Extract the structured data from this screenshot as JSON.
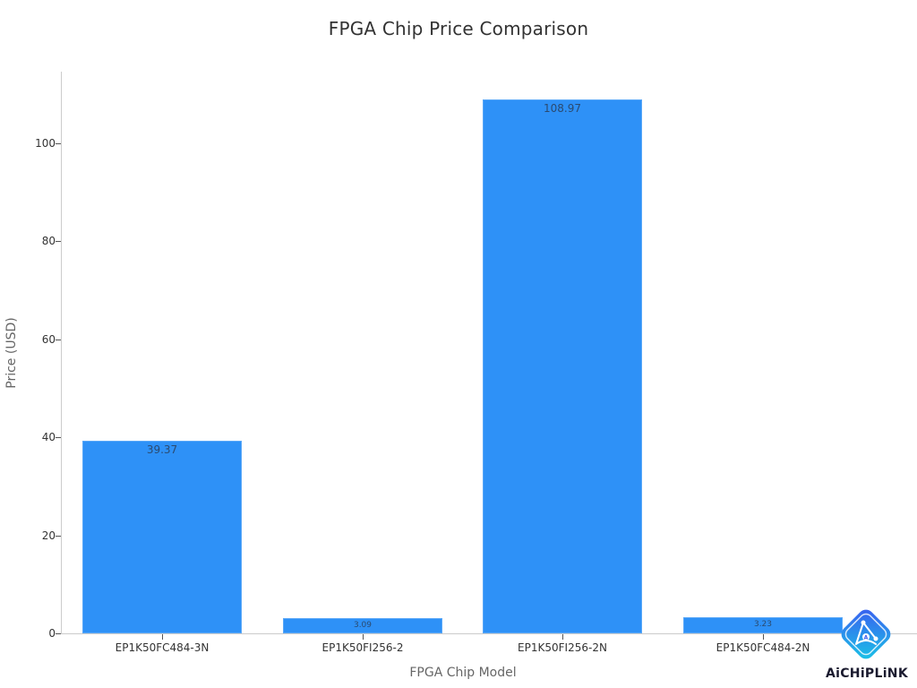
{
  "chart_data": {
    "type": "bar",
    "title": "FPGA Chip Price Comparison",
    "xlabel": "FPGA Chip Model",
    "ylabel": "Price (USD)",
    "categories": [
      "EP1K50FC484-3N",
      "EP1K50FI256-2",
      "EP1K50FI256-2N",
      "EP1K50FC484-2N"
    ],
    "values": [
      39.37,
      3.09,
      108.97,
      3.23
    ],
    "data_labels": [
      "39.37",
      "3.09",
      "108.97",
      "3.23"
    ],
    "ylim": [
      0,
      115
    ],
    "yticks": [
      0,
      20,
      40,
      60,
      80,
      100
    ],
    "ytick_labels": [
      "0",
      "20",
      "40",
      "60",
      "80",
      "100"
    ],
    "grid": false,
    "legend": null,
    "bar_color": "#2e91f7"
  },
  "watermark": {
    "text": "AiCHiPLiNK",
    "icon": "aichiplink-logo-icon"
  }
}
